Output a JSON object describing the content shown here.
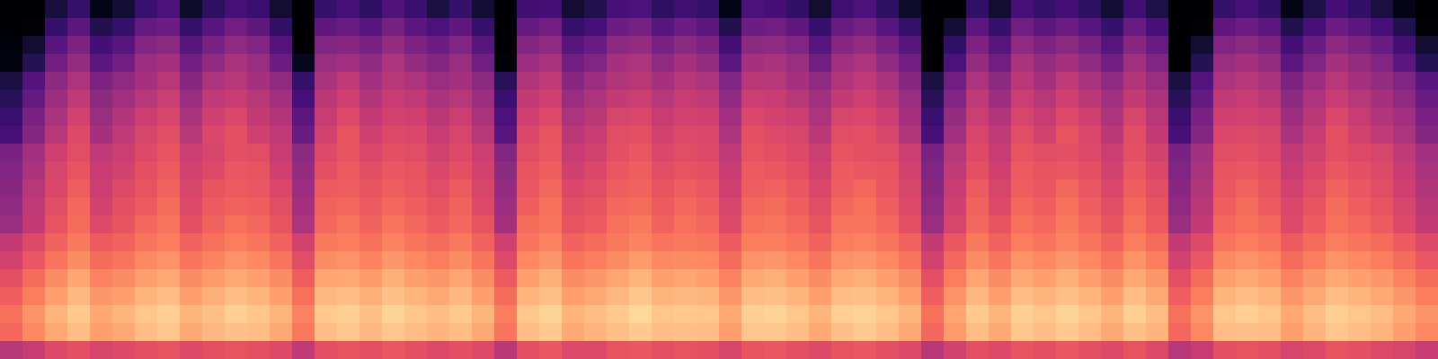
{
  "chart_data": {
    "type": "heatmap",
    "color": "magma",
    "zlim": [
      0,
      100
    ],
    "tick_labels": false,
    "cells": [
      [
        0,
        0,
        11,
        19,
        4,
        10,
        20,
        24,
        8,
        17,
        23,
        20,
        9,
        0,
        19,
        23,
        17,
        25,
        20,
        12,
        19,
        10,
        0,
        21,
        22,
        9,
        14,
        23,
        24,
        17,
        21,
        19,
        4,
        24,
        22,
        18,
        9,
        21,
        24,
        17,
        8,
        0,
        0,
        18,
        9,
        23,
        19,
        22,
        17,
        10,
        21,
        13,
        0,
        0,
        19,
        23,
        18,
        4,
        13,
        22,
        18,
        12,
        4,
        0
      ],
      [
        0,
        1,
        19,
        28,
        14,
        19,
        30,
        32,
        19,
        27,
        33,
        29,
        18,
        0,
        29,
        31,
        27,
        34,
        28,
        24,
        29,
        19,
        0,
        30,
        33,
        19,
        23,
        32,
        34,
        27,
        32,
        28,
        14,
        32,
        33,
        29,
        19,
        31,
        34,
        27,
        19,
        0,
        10,
        28,
        19,
        33,
        28,
        32,
        27,
        19,
        31,
        23,
        0,
        1,
        29,
        32,
        28,
        14,
        23,
        32,
        28,
        23,
        14,
        1
      ],
      [
        2,
        9,
        27,
        36,
        22,
        27,
        38,
        40,
        27,
        35,
        41,
        37,
        26,
        0,
        37,
        39,
        35,
        42,
        36,
        32,
        37,
        27,
        0,
        38,
        41,
        27,
        31,
        40,
        42,
        35,
        40,
        36,
        22,
        40,
        41,
        37,
        27,
        39,
        42,
        35,
        27,
        0,
        18,
        36,
        27,
        41,
        36,
        40,
        35,
        27,
        39,
        31,
        0,
        9,
        37,
        40,
        36,
        22,
        31,
        40,
        36,
        31,
        22,
        9
      ],
      [
        3,
        15,
        33,
        42,
        28,
        33,
        44,
        46,
        33,
        41,
        47,
        43,
        32,
        6,
        43,
        45,
        41,
        48,
        42,
        38,
        43,
        33,
        2,
        44,
        47,
        33,
        37,
        46,
        48,
        41,
        46,
        42,
        28,
        46,
        47,
        43,
        33,
        45,
        48,
        41,
        33,
        0,
        24,
        42,
        33,
        47,
        42,
        46,
        41,
        33,
        45,
        37,
        0,
        15,
        43,
        46,
        42,
        28,
        37,
        46,
        42,
        37,
        28,
        15
      ],
      [
        12,
        26,
        40,
        48,
        36,
        41,
        46,
        51,
        39,
        48,
        50,
        46,
        41,
        19,
        47,
        52,
        45,
        50,
        48,
        43,
        46,
        40,
        16,
        49,
        52,
        39,
        44,
        49,
        51,
        46,
        50,
        48,
        37,
        51,
        50,
        46,
        41,
        49,
        52,
        47,
        39,
        12,
        33,
        48,
        40,
        51,
        46,
        52,
        47,
        41,
        49,
        43,
        12,
        26,
        48,
        50,
        47,
        36,
        44,
        50,
        46,
        42,
        37,
        27
      ],
      [
        16,
        30,
        44,
        52,
        40,
        45,
        50,
        55,
        43,
        52,
        54,
        50,
        45,
        23,
        51,
        56,
        49,
        54,
        52,
        47,
        50,
        44,
        20,
        53,
        56,
        43,
        48,
        53,
        55,
        50,
        54,
        52,
        41,
        55,
        54,
        50,
        45,
        53,
        56,
        51,
        43,
        16,
        37,
        52,
        44,
        55,
        50,
        56,
        51,
        45,
        53,
        47,
        16,
        30,
        52,
        54,
        51,
        40,
        48,
        54,
        50,
        46,
        41,
        31
      ],
      [
        20,
        35,
        47,
        57,
        43,
        49,
        55,
        58,
        47,
        56,
        59,
        53,
        49,
        28,
        54,
        60,
        53,
        57,
        56,
        51,
        55,
        47,
        24,
        56,
        60,
        48,
        51,
        58,
        59,
        54,
        57,
        56,
        45,
        59,
        57,
        55,
        48,
        58,
        59,
        55,
        46,
        20,
        42,
        55,
        49,
        58,
        54,
        60,
        56,
        48,
        58,
        50,
        20,
        35,
        56,
        57,
        55,
        44,
        51,
        59,
        54,
        49,
        45,
        35
      ],
      [
        23,
        38,
        50,
        60,
        46,
        52,
        58,
        61,
        50,
        59,
        62,
        56,
        52,
        31,
        57,
        63,
        56,
        60,
        59,
        54,
        58,
        50,
        27,
        59,
        63,
        51,
        54,
        61,
        62,
        57,
        60,
        59,
        48,
        62,
        60,
        58,
        51,
        61,
        62,
        58,
        49,
        23,
        45,
        58,
        52,
        61,
        57,
        63,
        59,
        51,
        61,
        53,
        23,
        38,
        59,
        60,
        58,
        47,
        54,
        62,
        57,
        52,
        48,
        38
      ],
      [
        35,
        45,
        56,
        61,
        52,
        55,
        60,
        63,
        55,
        58,
        62,
        61,
        54,
        40,
        60,
        63,
        59,
        62,
        61,
        57,
        60,
        55,
        38,
        61,
        64,
        54,
        57,
        62,
        64,
        59,
        61,
        60,
        52,
        63,
        62,
        60,
        55,
        63,
        62,
        61,
        55,
        35,
        50,
        60,
        54,
        63,
        61,
        62,
        60,
        55,
        62,
        57,
        35,
        45,
        61,
        62,
        60,
        52,
        57,
        62,
        60,
        58,
        52,
        45
      ],
      [
        37,
        47,
        58,
        63,
        54,
        57,
        62,
        65,
        57,
        60,
        64,
        63,
        56,
        42,
        62,
        65,
        61,
        64,
        63,
        59,
        62,
        57,
        40,
        63,
        66,
        56,
        59,
        64,
        66,
        61,
        63,
        62,
        54,
        65,
        64,
        62,
        57,
        65,
        64,
        63,
        57,
        37,
        52,
        62,
        56,
        65,
        63,
        64,
        62,
        57,
        64,
        59,
        37,
        47,
        63,
        64,
        62,
        54,
        59,
        64,
        62,
        60,
        54,
        47
      ],
      [
        39,
        50,
        59,
        66,
        55,
        60,
        63,
        67,
        58,
        63,
        65,
        64,
        59,
        44,
        65,
        66,
        63,
        66,
        64,
        61,
        65,
        58,
        42,
        64,
        68,
        59,
        61,
        66,
        67,
        63,
        66,
        64,
        56,
        66,
        67,
        64,
        59,
        66,
        68,
        64,
        58,
        39,
        54,
        65,
        58,
        66,
        64,
        68,
        64,
        59,
        66,
        61,
        39,
        49,
        64,
        67,
        63,
        57,
        61,
        67,
        64,
        61,
        56,
        49
      ],
      [
        41,
        52,
        61,
        68,
        57,
        62,
        65,
        69,
        60,
        65,
        67,
        66,
        61,
        46,
        67,
        68,
        65,
        68,
        66,
        63,
        67,
        60,
        44,
        66,
        70,
        61,
        63,
        68,
        69,
        65,
        68,
        66,
        58,
        68,
        69,
        66,
        61,
        68,
        70,
        66,
        60,
        41,
        56,
        67,
        60,
        68,
        66,
        70,
        66,
        61,
        68,
        63,
        41,
        51,
        66,
        69,
        65,
        59,
        63,
        69,
        66,
        63,
        58,
        51
      ],
      [
        43,
        53,
        63,
        69,
        60,
        63,
        68,
        71,
        62,
        67,
        70,
        68,
        63,
        48,
        68,
        71,
        67,
        71,
        68,
        65,
        68,
        63,
        46,
        69,
        71,
        63,
        65,
        70,
        72,
        67,
        70,
        68,
        60,
        70,
        71,
        68,
        63,
        71,
        71,
        68,
        62,
        43,
        58,
        68,
        63,
        70,
        68,
        72,
        68,
        63,
        70,
        65,
        43,
        53,
        68,
        70,
        68,
        60,
        65,
        70,
        68,
        65,
        60,
        53
      ],
      [
        53,
        60,
        67,
        72,
        65,
        67,
        71,
        73,
        67,
        70,
        73,
        71,
        67,
        57,
        72,
        73,
        70,
        74,
        71,
        69,
        72,
        67,
        56,
        71,
        74,
        67,
        69,
        72,
        74,
        71,
        72,
        71,
        65,
        73,
        73,
        71,
        67,
        73,
        74,
        71,
        67,
        53,
        64,
        72,
        67,
        73,
        71,
        74,
        71,
        67,
        73,
        69,
        53,
        60,
        71,
        73,
        71,
        65,
        69,
        73,
        71,
        69,
        65,
        60
      ],
      [
        57,
        64,
        71,
        76,
        69,
        71,
        75,
        77,
        71,
        74,
        77,
        75,
        71,
        61,
        76,
        77,
        74,
        78,
        75,
        73,
        76,
        71,
        60,
        75,
        78,
        71,
        73,
        76,
        79,
        75,
        76,
        75,
        69,
        77,
        78,
        75,
        71,
        77,
        78,
        75,
        71,
        57,
        68,
        76,
        71,
        77,
        75,
        78,
        75,
        71,
        77,
        73,
        57,
        64,
        75,
        77,
        75,
        69,
        73,
        77,
        75,
        73,
        69,
        64
      ],
      [
        62,
        69,
        76,
        81,
        74,
        76,
        80,
        82,
        76,
        79,
        82,
        80,
        76,
        66,
        81,
        82,
        79,
        83,
        80,
        78,
        81,
        76,
        65,
        80,
        83,
        76,
        78,
        81,
        84,
        80,
        81,
        80,
        74,
        82,
        83,
        80,
        76,
        82,
        83,
        80,
        76,
        62,
        73,
        81,
        76,
        82,
        80,
        83,
        80,
        76,
        82,
        78,
        62,
        69,
        80,
        82,
        80,
        74,
        78,
        82,
        80,
        78,
        74,
        69
      ],
      [
        66,
        73,
        80,
        85,
        78,
        80,
        84,
        86,
        80,
        83,
        86,
        84,
        80,
        70,
        85,
        86,
        83,
        87,
        84,
        82,
        85,
        80,
        69,
        84,
        87,
        80,
        82,
        85,
        88,
        84,
        85,
        84,
        78,
        86,
        87,
        84,
        80,
        86,
        87,
        84,
        80,
        66,
        77,
        85,
        80,
        86,
        84,
        87,
        84,
        80,
        86,
        82,
        66,
        73,
        84,
        86,
        84,
        78,
        82,
        86,
        84,
        82,
        78,
        73
      ],
      [
        70,
        77,
        84,
        89,
        82,
        84,
        88,
        90,
        84,
        87,
        90,
        88,
        84,
        74,
        89,
        90,
        87,
        91,
        88,
        86,
        89,
        84,
        73,
        88,
        91,
        84,
        86,
        89,
        92,
        88,
        89,
        88,
        82,
        90,
        91,
        88,
        84,
        90,
        91,
        88,
        84,
        70,
        81,
        89,
        84,
        90,
        88,
        91,
        88,
        84,
        90,
        86,
        70,
        77,
        88,
        90,
        88,
        82,
        86,
        90,
        88,
        86,
        82,
        77
      ],
      [
        68,
        75,
        82,
        86,
        80,
        82,
        86,
        88,
        82,
        85,
        87,
        86,
        82,
        72,
        86,
        88,
        85,
        88,
        86,
        84,
        86,
        82,
        71,
        86,
        89,
        82,
        84,
        87,
        89,
        86,
        87,
        86,
        80,
        88,
        88,
        86,
        82,
        87,
        89,
        86,
        82,
        68,
        79,
        86,
        82,
        88,
        86,
        89,
        86,
        82,
        87,
        84,
        68,
        75,
        86,
        87,
        86,
        80,
        84,
        88,
        86,
        84,
        80,
        75
      ],
      [
        50,
        54,
        60,
        62,
        58,
        60,
        62,
        63,
        60,
        62,
        63,
        62,
        60,
        52,
        62,
        63,
        62,
        64,
        62,
        60,
        62,
        60,
        51,
        62,
        64,
        60,
        60,
        63,
        64,
        62,
        63,
        62,
        58,
        63,
        64,
        62,
        60,
        63,
        64,
        62,
        60,
        50,
        57,
        62,
        60,
        63,
        62,
        64,
        62,
        60,
        63,
        60,
        50,
        54,
        62,
        63,
        62,
        58,
        60,
        63,
        62,
        60,
        58,
        54
      ]
    ]
  }
}
